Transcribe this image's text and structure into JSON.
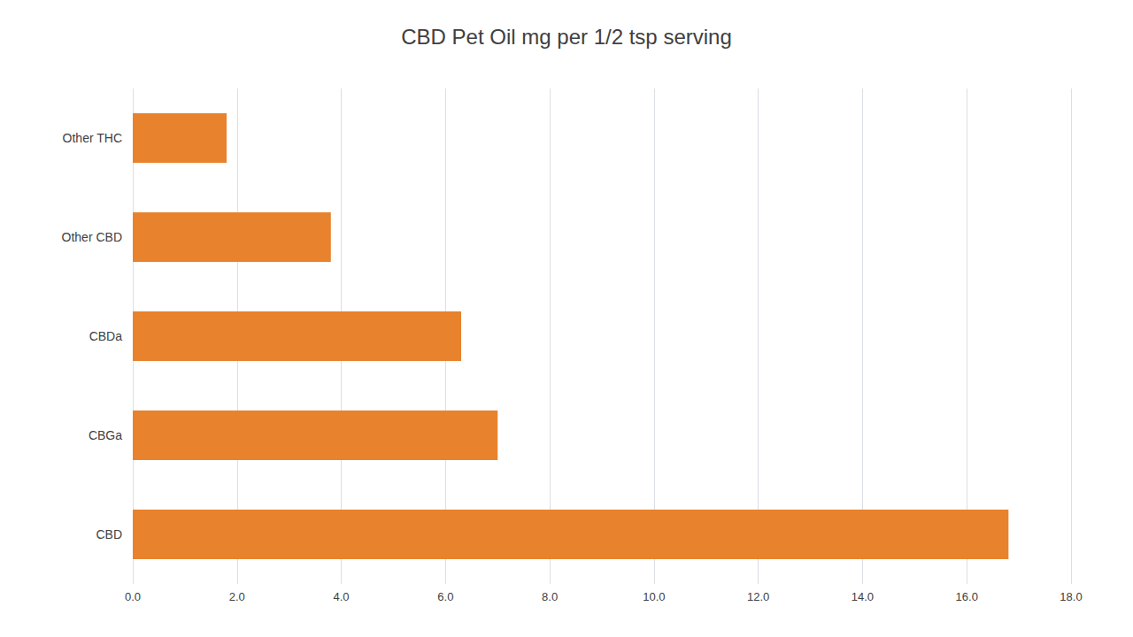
{
  "chart_data": {
    "type": "bar",
    "orientation": "horizontal",
    "title": "CBD Pet Oil mg per 1/2 tsp serving",
    "categories": [
      "CBD",
      "CBGa",
      "CBDa",
      "Other CBD",
      "Other THC"
    ],
    "values": [
      16.8,
      7.0,
      6.3,
      3.8,
      1.8
    ],
    "color": "#E8822C",
    "xlim": [
      0,
      18.0
    ],
    "xticks": [
      {
        "value": 0.0,
        "label": "0.0"
      },
      {
        "value": 2.0,
        "label": "2.0"
      },
      {
        "value": 4.0,
        "label": "4.0"
      },
      {
        "value": 6.0,
        "label": "6.0"
      },
      {
        "value": 8.0,
        "label": "8.0"
      },
      {
        "value": 10.0,
        "label": "10.0"
      },
      {
        "value": 12.0,
        "label": "12.0"
      },
      {
        "value": 14.0,
        "label": "14.0"
      },
      {
        "value": 16.0,
        "label": "16.0"
      },
      {
        "value": 18.0,
        "label": "18.0"
      }
    ],
    "grid": true
  }
}
